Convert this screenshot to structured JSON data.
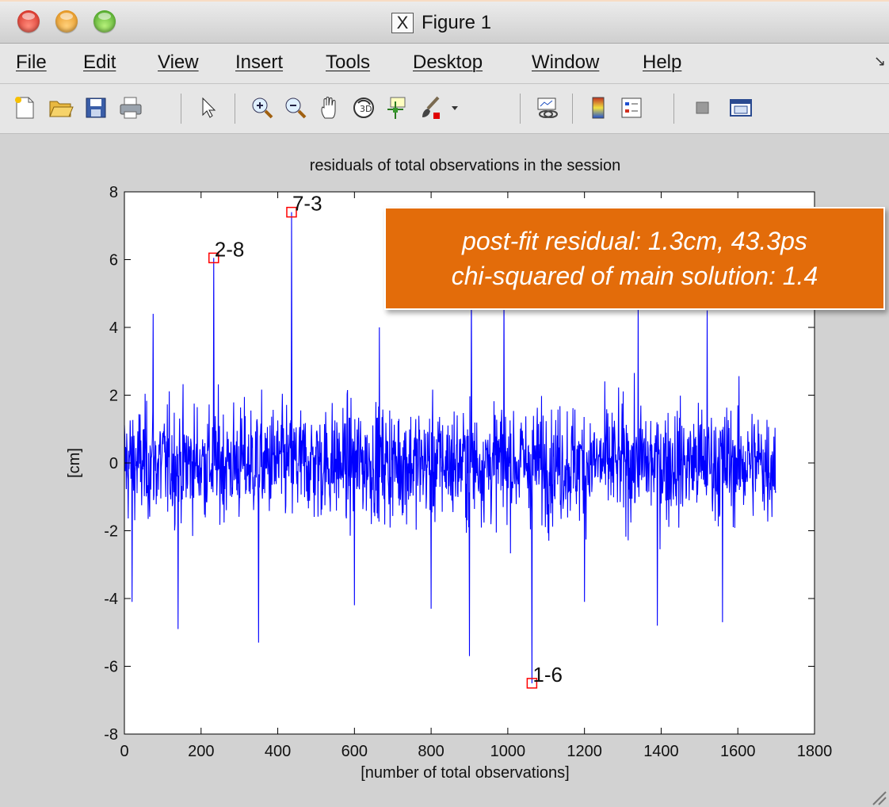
{
  "window": {
    "title": "Figure 1",
    "title_icon": "x11-icon"
  },
  "menu": [
    "File",
    "Edit",
    "View",
    "Insert",
    "Tools",
    "Desktop",
    "Window",
    "Help"
  ],
  "toolbar": [
    {
      "name": "new-figure-icon"
    },
    {
      "name": "open-file-icon"
    },
    {
      "name": "save-icon"
    },
    {
      "name": "print-icon"
    },
    {
      "name": "select-arrow-icon"
    },
    {
      "name": "zoom-in-icon"
    },
    {
      "name": "zoom-out-icon"
    },
    {
      "name": "pan-hand-icon"
    },
    {
      "name": "rotate-3d-icon"
    },
    {
      "name": "data-cursor-icon"
    },
    {
      "name": "brush-icon"
    },
    {
      "name": "link-plot-icon"
    },
    {
      "name": "colorbar-icon"
    },
    {
      "name": "legend-icon"
    },
    {
      "name": "hide-plot-tools-icon"
    },
    {
      "name": "show-plot-tools-icon"
    }
  ],
  "annotation": {
    "line1": "post-fit residual: 1.3cm,  43.3ps",
    "line2": "chi-squared of main solution: 1.4",
    "color": "#e36c0a"
  },
  "chart_data": {
    "type": "line",
    "title": "residuals of total observations in the session",
    "xlabel": "[number of total observations]",
    "ylabel": "[cm]",
    "xlim": [
      0,
      1800
    ],
    "ylim": [
      -8,
      8
    ],
    "xticks": [
      0,
      200,
      400,
      600,
      800,
      1000,
      1200,
      1400,
      1600,
      1800
    ],
    "yticks": [
      -8,
      -6,
      -4,
      -2,
      0,
      2,
      4,
      6,
      8
    ],
    "grid": false,
    "series": [
      {
        "color": "#0000ff",
        "n_points": 1700,
        "outliers": [
          {
            "x": 20,
            "y": -4.1
          },
          {
            "x": 75,
            "y": 4.4
          },
          {
            "x": 140,
            "y": -4.9
          },
          {
            "x": 233,
            "y": 6.05
          },
          {
            "x": 350,
            "y": -5.3
          },
          {
            "x": 436,
            "y": 7.4
          },
          {
            "x": 600,
            "y": -4.2
          },
          {
            "x": 665,
            "y": 4.0
          },
          {
            "x": 800,
            "y": -4.3
          },
          {
            "x": 900,
            "y": -5.7
          },
          {
            "x": 905,
            "y": 5.2
          },
          {
            "x": 990,
            "y": 5.0
          },
          {
            "x": 1063,
            "y": -6.5
          },
          {
            "x": 1200,
            "y": -4.1
          },
          {
            "x": 1340,
            "y": 4.6
          },
          {
            "x": 1390,
            "y": -4.8
          },
          {
            "x": 1520,
            "y": 4.5
          },
          {
            "x": 1560,
            "y": -4.7
          }
        ],
        "spread": 1.4
      }
    ],
    "markers": [
      {
        "label": "2-8",
        "x": 233,
        "y": 6.05
      },
      {
        "label": "7-3",
        "x": 436,
        "y": 7.4
      },
      {
        "label": "1-6",
        "x": 1063,
        "y": -6.5
      }
    ],
    "marker_color": "#ff0000"
  }
}
